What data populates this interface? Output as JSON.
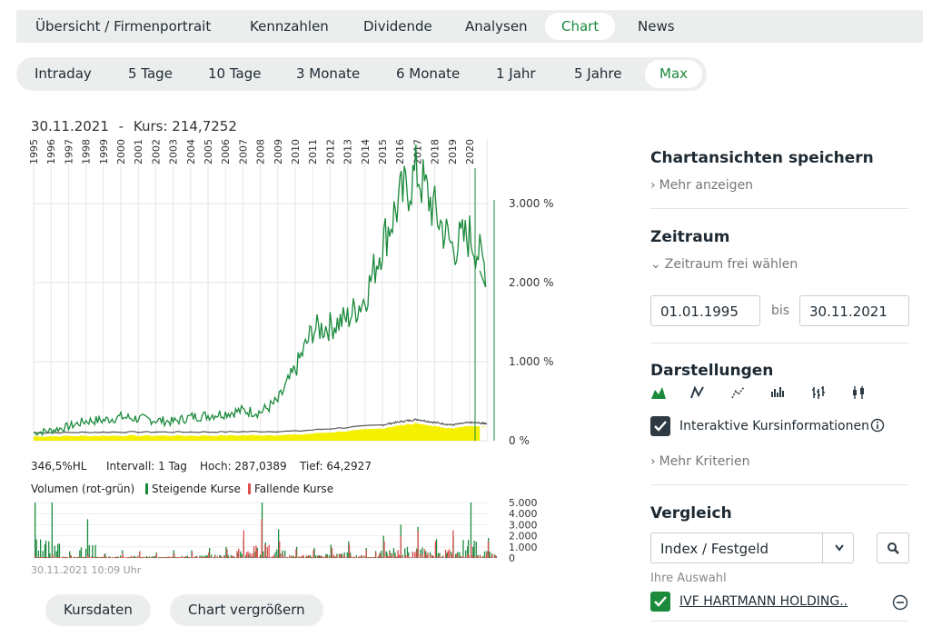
{
  "nav_tabs": [
    "Übersicht / Firmenportrait",
    "Kennzahlen",
    "Dividende",
    "Analysen",
    "Chart",
    "News"
  ],
  "range_tabs": [
    "Intraday",
    "5 Tage",
    "10 Tage",
    "3 Monate",
    "6 Monate",
    "1 Jahr",
    "5 Jahre",
    "Max"
  ],
  "chart_header": {
    "date": "30.11.2021",
    "separator": "-",
    "kurs_label": "Kurs:",
    "kurs_value": "214,7252"
  },
  "chart_data": [
    {
      "type": "line",
      "x_labels": [
        "1995",
        "1996",
        "1997",
        "1998",
        "1999",
        "2000",
        "2001",
        "2002",
        "2003",
        "2004",
        "2005",
        "2006",
        "2007",
        "2008",
        "2009",
        "2010",
        "2011",
        "2012",
        "2013",
        "2014",
        "2015",
        "2016",
        "2017",
        "2018",
        "2019",
        "2020"
      ],
      "y_tick_labels": [
        "0 %",
        "1.000 %",
        "2.000 %",
        "3.000 %"
      ],
      "ylim": [
        0,
        3500
      ],
      "series": [
        {
          "color": "#1b8a3c",
          "points": [
            [
              "1995",
              100
            ],
            [
              "1996",
              130
            ],
            [
              "1997",
              180
            ],
            [
              "1998",
              250
            ],
            [
              "1999",
              260
            ],
            [
              "2000",
              300
            ],
            [
              "2001",
              280
            ],
            [
              "2002",
              260
            ],
            [
              "2003",
              240
            ],
            [
              "2004",
              300
            ],
            [
              "2005",
              320
            ],
            [
              "2006",
              350
            ],
            [
              "2007",
              380
            ],
            [
              "2008",
              360
            ],
            [
              "2009",
              500
            ],
            [
              "2010",
              900
            ],
            [
              "2011",
              1400
            ],
            [
              "2012",
              1450
            ],
            [
              "2013",
              1550
            ],
            [
              "2014",
              1800
            ],
            [
              "2015",
              2500
            ],
            [
              "2016",
              3050
            ],
            [
              "2017",
              3400
            ],
            [
              "2018",
              2900
            ],
            [
              "2019",
              2450
            ],
            [
              "2020",
              2600
            ],
            [
              "2021",
              2150
            ]
          ]
        },
        {
          "color": "#555555",
          "fill": "#f5f000",
          "points": [
            [
              "1995",
              100
            ],
            [
              "2000",
              110
            ],
            [
              "2005",
              110
            ],
            [
              "2010",
              120
            ],
            [
              "2015",
              200
            ],
            [
              "2016",
              240
            ],
            [
              "2017",
              270
            ],
            [
              "2018",
              230
            ],
            [
              "2019",
              200
            ],
            [
              "2020",
              230
            ],
            [
              "2021",
              220
            ]
          ]
        }
      ]
    },
    {
      "type": "bar",
      "title": "Volumen (rot-grün)",
      "legend": [
        "Steigende Kurse",
        "Fallende Kurse"
      ],
      "legend_colors": [
        "#1b8a3c",
        "#e05050"
      ],
      "y_tick_labels": [
        "5.000",
        "4.000",
        "3.000",
        "2.000",
        "1.000",
        "0"
      ],
      "ylim": [
        0,
        5000
      ],
      "series": [
        {
          "name": "Steigende Kurse",
          "color": "#1b8a3c",
          "values_by_year": [
            [
              "1995",
              5000
            ],
            [
              "1996",
              5000
            ],
            [
              "1997",
              600
            ],
            [
              "1998",
              3500
            ],
            [
              "1999",
              400
            ],
            [
              "2000",
              700
            ],
            [
              "2001",
              600
            ],
            [
              "2002",
              500
            ],
            [
              "2003",
              700
            ],
            [
              "2004",
              700
            ],
            [
              "2005",
              900
            ],
            [
              "2006",
              1000
            ],
            [
              "2007",
              1800
            ],
            [
              "2008",
              5000
            ],
            [
              "2009",
              2600
            ],
            [
              "2010",
              1000
            ],
            [
              "2011",
              900
            ],
            [
              "2012",
              1200
            ],
            [
              "2013",
              1500
            ],
            [
              "2014",
              900
            ],
            [
              "2015",
              2000
            ],
            [
              "2016",
              3000
            ],
            [
              "2017",
              2800
            ],
            [
              "2018",
              1700
            ],
            [
              "2019",
              2000
            ],
            [
              "2020",
              5000
            ],
            [
              "2021",
              1800
            ]
          ]
        },
        {
          "name": "Fallende Kurse",
          "color": "#e05050",
          "values_by_year": [
            [
              "1995",
              200
            ],
            [
              "1996",
              300
            ],
            [
              "1997",
              300
            ],
            [
              "1998",
              300
            ],
            [
              "1999",
              300
            ],
            [
              "2000",
              400
            ],
            [
              "2001",
              600
            ],
            [
              "2002",
              400
            ],
            [
              "2003",
              400
            ],
            [
              "2004",
              500
            ],
            [
              "2005",
              500
            ],
            [
              "2006",
              800
            ],
            [
              "2007",
              2500
            ],
            [
              "2008",
              3500
            ],
            [
              "2009",
              1500
            ],
            [
              "2010",
              800
            ],
            [
              "2011",
              700
            ],
            [
              "2012",
              900
            ],
            [
              "2013",
              1200
            ],
            [
              "2014",
              700
            ],
            [
              "2015",
              1500
            ],
            [
              "2016",
              2000
            ],
            [
              "2017",
              2500
            ],
            [
              "2018",
              1500
            ],
            [
              "2019",
              2500
            ],
            [
              "2020",
              1200
            ],
            [
              "2021",
              1500
            ]
          ]
        }
      ]
    }
  ],
  "stats": {
    "hl": "346,5%HL",
    "interval": "Intervall: 1 Tag",
    "hoch": "Hoch: 287,0389",
    "tief": "Tief: 64,2927"
  },
  "volume_title": "Volumen (rot-grün)",
  "volume_legend_up": "Steigende Kurse",
  "volume_legend_down": "Fallende Kurse",
  "timestamp": "30.11.2021 10:09 Uhr",
  "buttons": {
    "kursdaten": "Kursdaten",
    "vergroessern": "Chart vergrößern"
  },
  "sidebar": {
    "save_title": "Chartansichten speichern",
    "more_link": "Mehr anzeigen",
    "zeitraum_title": "Zeitraum",
    "zeitraum_free": "Zeitraum frei wählen",
    "date_from": "01.01.1995",
    "bis": "bis",
    "date_to": "30.11.2021",
    "darstellungen_title": "Darstellungen",
    "interactive_label": "Interaktive Kursinformationen",
    "more_criteria": "Mehr Kriterien",
    "vergleich_title": "Vergleich",
    "select_value": "Index / Festgeld",
    "auswahl_label": "Ihre Auswahl",
    "selected_item": "IVF HARTMANN HOLDING.."
  },
  "colors": {
    "accent": "#1b8a3c",
    "dark": "#2d3a44",
    "fill": "#f5f000"
  }
}
